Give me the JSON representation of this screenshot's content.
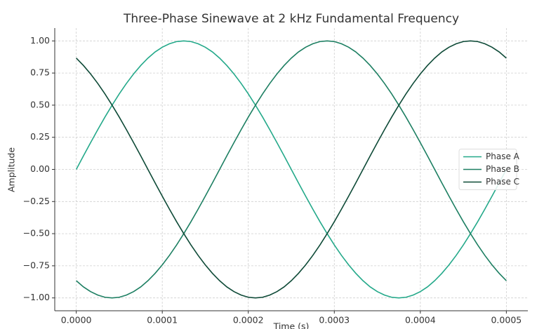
{
  "chart_data": {
    "type": "line",
    "title": "Three-Phase Sinewave at 2 kHz Fundamental Frequency",
    "xlabel": "Time (s)",
    "ylabel": "Amplitude",
    "x": [
      0,
      8.33e-06,
      1.667e-05,
      2.5e-05,
      3.333e-05,
      4.167e-05,
      5e-05,
      5.833e-05,
      6.667e-05,
      7.5e-05,
      8.333e-05,
      9.167e-05,
      0.0001,
      0.00010833,
      0.00011667,
      0.000125,
      0.00013333,
      0.00014167,
      0.00015,
      0.00015833,
      0.00016667,
      0.000175,
      0.00018333,
      0.00019167,
      0.0002,
      0.00020833,
      0.00021667,
      0.000225,
      0.00023333,
      0.00024167,
      0.00025,
      0.00025833,
      0.00026667,
      0.000275,
      0.00028333,
      0.00029167,
      0.0003,
      0.00030833,
      0.00031667,
      0.000325,
      0.00033333,
      0.00034167,
      0.00035,
      0.00035833,
      0.00036667,
      0.000375,
      0.00038333,
      0.00039167,
      0.0004,
      0.00040833,
      0.00041667,
      0.000425,
      0.00043333,
      0.00044167,
      0.00045,
      0.00045833,
      0.00046667,
      0.000475,
      0.00048333,
      0.00049167,
      0.0005
    ],
    "series": [
      {
        "name": "Phase A",
        "color": "#24a98a",
        "values": [
          0,
          0.105,
          0.208,
          0.309,
          0.407,
          0.5,
          0.588,
          0.669,
          0.743,
          0.809,
          0.866,
          0.914,
          0.951,
          0.978,
          0.995,
          1,
          0.995,
          0.978,
          0.951,
          0.914,
          0.866,
          0.809,
          0.743,
          0.669,
          0.588,
          0.5,
          0.407,
          0.309,
          0.208,
          0.105,
          0,
          -0.105,
          -0.208,
          -0.309,
          -0.407,
          -0.5,
          -0.588,
          -0.669,
          -0.743,
          -0.809,
          -0.866,
          -0.914,
          -0.951,
          -0.978,
          -0.995,
          -1,
          -0.995,
          -0.978,
          -0.951,
          -0.914,
          -0.866,
          -0.809,
          -0.743,
          -0.669,
          -0.588,
          -0.5,
          -0.407,
          -0.309,
          -0.208,
          -0.105,
          0
        ]
      },
      {
        "name": "Phase B",
        "color": "#1d7f62",
        "values": [
          -0.866,
          -0.914,
          -0.951,
          -0.978,
          -0.995,
          -1,
          -0.995,
          -0.978,
          -0.951,
          -0.914,
          -0.866,
          -0.809,
          -0.743,
          -0.669,
          -0.588,
          -0.5,
          -0.407,
          -0.309,
          -0.208,
          -0.105,
          0,
          0.105,
          0.208,
          0.309,
          0.407,
          0.5,
          0.588,
          0.669,
          0.743,
          0.809,
          0.866,
          0.914,
          0.951,
          0.978,
          0.995,
          1,
          0.995,
          0.978,
          0.951,
          0.914,
          0.866,
          0.809,
          0.743,
          0.669,
          0.588,
          0.5,
          0.407,
          0.309,
          0.208,
          0.105,
          0,
          -0.105,
          -0.208,
          -0.309,
          -0.407,
          -0.5,
          -0.588,
          -0.669,
          -0.743,
          -0.809,
          -0.866
        ]
      },
      {
        "name": "Phase C",
        "color": "#0e4a37",
        "values": [
          0.866,
          0.809,
          0.743,
          0.669,
          0.588,
          0.5,
          0.407,
          0.309,
          0.208,
          0.105,
          0,
          -0.105,
          -0.208,
          -0.309,
          -0.407,
          -0.5,
          -0.588,
          -0.669,
          -0.743,
          -0.809,
          -0.866,
          -0.914,
          -0.951,
          -0.978,
          -0.995,
          -1,
          -0.995,
          -0.978,
          -0.951,
          -0.914,
          -0.866,
          -0.809,
          -0.743,
          -0.669,
          -0.588,
          -0.5,
          -0.407,
          -0.309,
          -0.208,
          -0.105,
          0,
          0.105,
          0.208,
          0.309,
          0.407,
          0.5,
          0.588,
          0.669,
          0.743,
          0.809,
          0.866,
          0.914,
          0.951,
          0.978,
          0.995,
          1,
          0.995,
          0.978,
          0.951,
          0.914,
          0.866
        ]
      }
    ],
    "xlim": [
      -2.5e-05,
      0.000525
    ],
    "xticks": [
      {
        "value": 0,
        "label": "0.0000"
      },
      {
        "value": 0.0001,
        "label": "0.0001"
      },
      {
        "value": 0.0002,
        "label": "0.0002"
      },
      {
        "value": 0.0003,
        "label": "0.0003"
      },
      {
        "value": 0.0004,
        "label": "0.0004"
      },
      {
        "value": 0.0005,
        "label": "0.0005"
      }
    ],
    "ylim": [
      -1.1,
      1.1
    ],
    "yticks": [
      {
        "value": -1,
        "label": "−1.00"
      },
      {
        "value": -0.75,
        "label": "−0.75"
      },
      {
        "value": -0.5,
        "label": "−0.50"
      },
      {
        "value": -0.25,
        "label": "−0.25"
      },
      {
        "value": 0,
        "label": "0.00"
      },
      {
        "value": 0.25,
        "label": "0.25"
      },
      {
        "value": 0.5,
        "label": "0.50"
      },
      {
        "value": 0.75,
        "label": "0.75"
      },
      {
        "value": 1,
        "label": "1.00"
      }
    ],
    "grid": true,
    "legend": "center right"
  }
}
